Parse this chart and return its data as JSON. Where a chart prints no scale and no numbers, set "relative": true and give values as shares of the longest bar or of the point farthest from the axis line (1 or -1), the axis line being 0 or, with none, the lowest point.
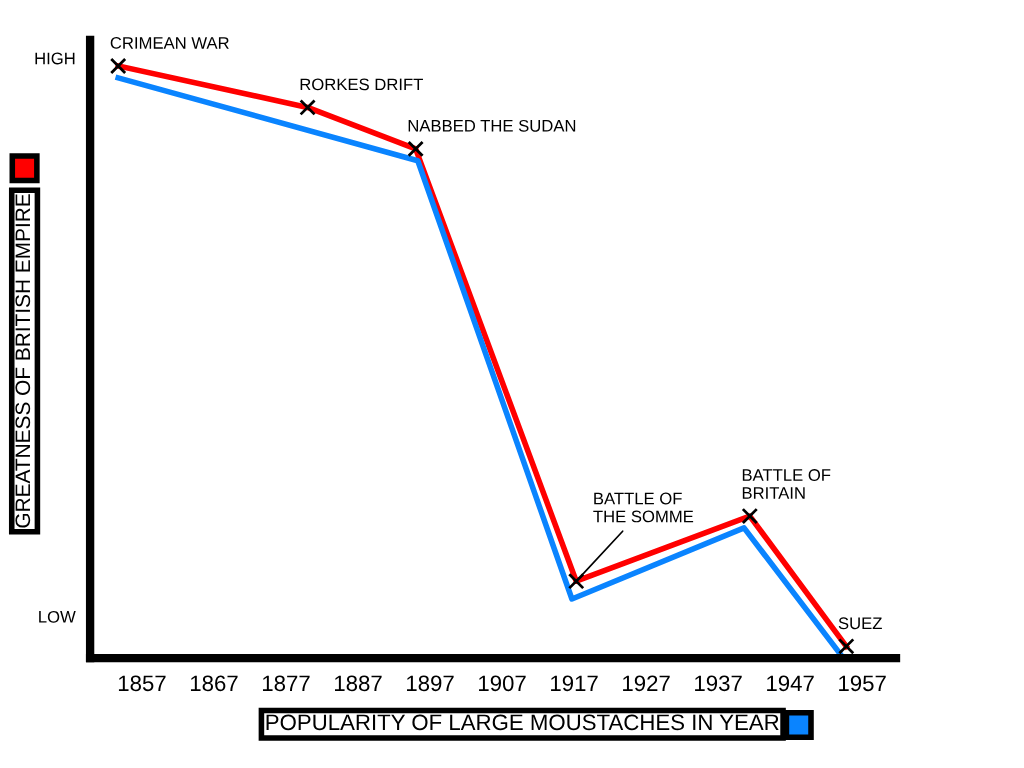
{
  "chart_data": {
    "type": "line",
    "relative": true,
    "xlabel": "POPULARITY OF LARGE MOUSTACHES IN YEAR",
    "ylabel": "GREATNESS OF BRITISH EMPIRE",
    "xlim": [
      1849.8,
      1961.7
    ],
    "xticks": [
      1857,
      1867,
      1877,
      1887,
      1897,
      1907,
      1917,
      1927,
      1937,
      1947,
      1957
    ],
    "grid": false,
    "legend": false,
    "series": [
      {
        "color": "#ff0000",
        "marker": "cross",
        "x": [
          1853.7,
          1880,
          1895,
          1917.3,
          1941.4,
          1954.8
        ],
        "values": [
          1,
          0.93,
          0.86,
          0.13,
          0.24,
          0.02
        ]
      },
      {
        "color": "#0a84ff",
        "marker": "none",
        "x": [
          1853.7,
          1895.3,
          1916.7,
          1940.6,
          1954.4
        ],
        "values": [
          0.98,
          0.84,
          0.1,
          0.22,
          0
        ]
      }
    ],
    "annotations": [
      "HIGH",
      "LOW",
      {
        "text": "CRIMEAN WAR",
        "x": 1853.7,
        "y": 1
      },
      {
        "text": "RORKES DRIFT",
        "x": 1880,
        "y": 0.93
      },
      {
        "text": "NABBED THE SUDAN",
        "x": 1895,
        "y": 0.86
      },
      {
        "text": "BATTLE OF\nTHE SOMME",
        "x": 1917.3,
        "y": 0.13
      },
      {
        "text": "BATTLE OF\nBRITAIN",
        "x": 1941.4,
        "y": 0.24
      },
      {
        "text": "SUEZ",
        "x": 1954.8,
        "y": 0.02
      }
    ]
  }
}
